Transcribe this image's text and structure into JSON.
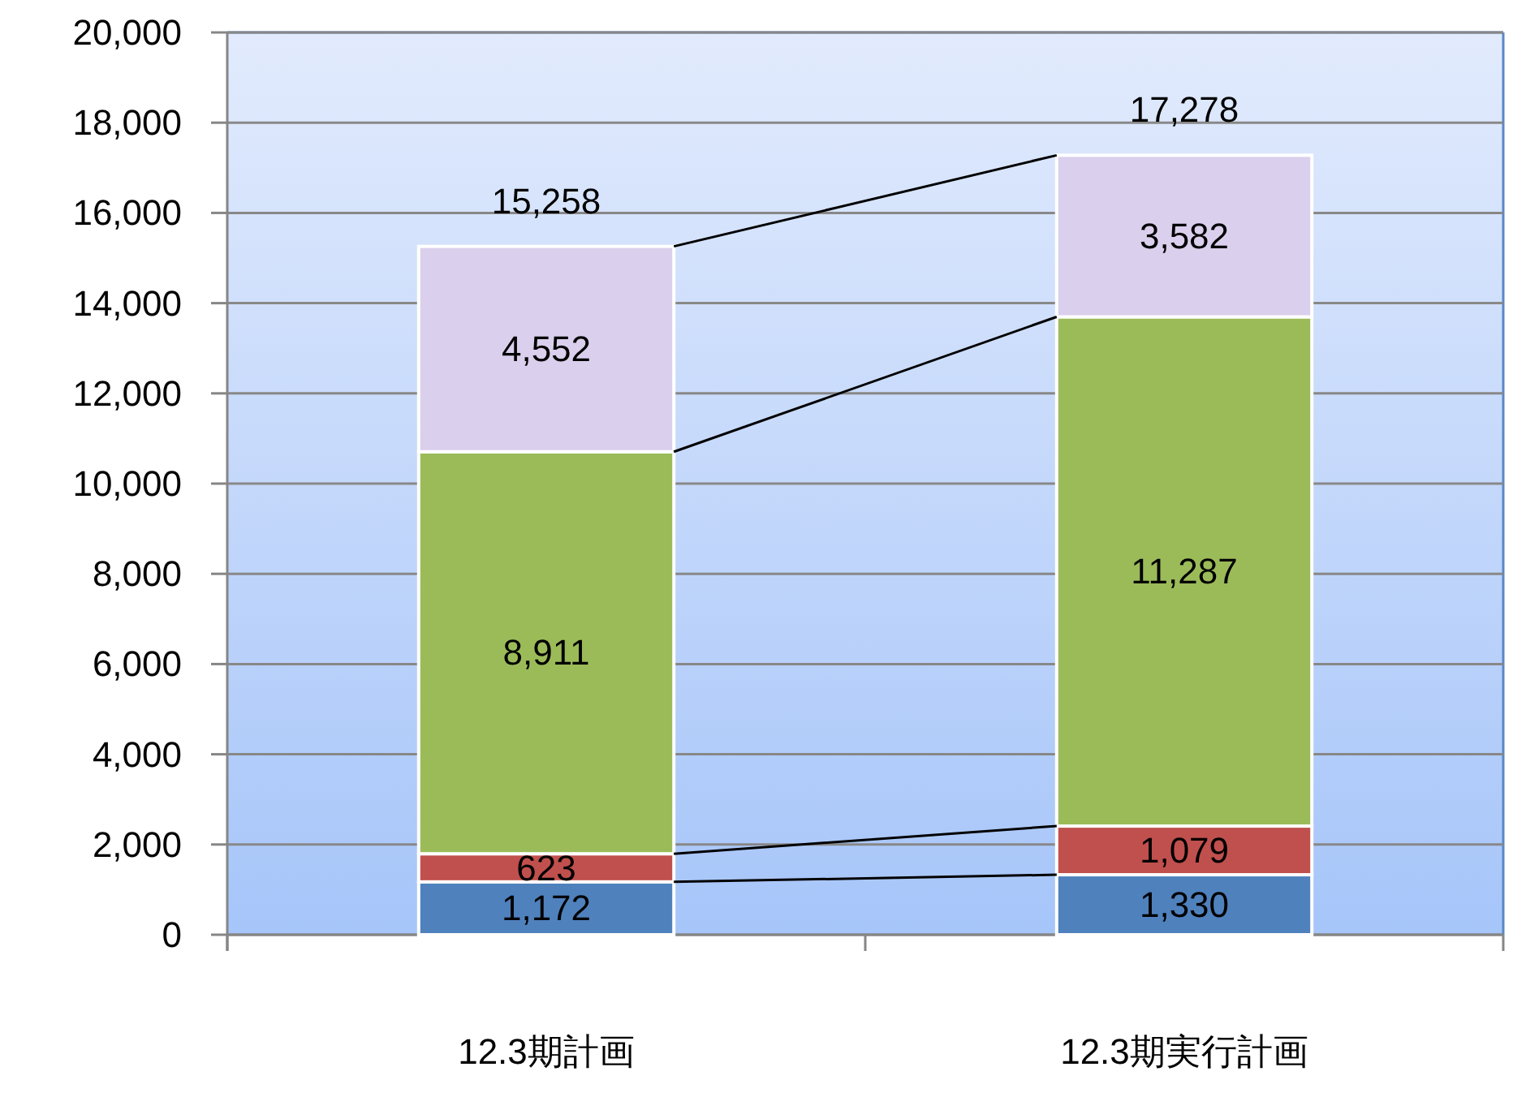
{
  "chart_data": {
    "type": "bar",
    "stacked": true,
    "categories": [
      "12.3期計画",
      "12.3期実行計画"
    ],
    "series": [
      {
        "color": "#4f81bd",
        "values": [
          1172,
          1330
        ],
        "value_labels": [
          "1,172",
          "1,330"
        ]
      },
      {
        "color": "#c0504d",
        "values": [
          623,
          1079
        ],
        "value_labels": [
          "623",
          "1,079"
        ]
      },
      {
        "color": "#9bbb59",
        "values": [
          8911,
          11287
        ],
        "value_labels": [
          "8,911",
          "11,287"
        ]
      },
      {
        "color": "#dacfec",
        "values": [
          4552,
          3582
        ],
        "value_labels": [
          "4,552",
          "3,582"
        ]
      }
    ],
    "totals": [
      "15,258",
      "17,278"
    ],
    "ylim": [
      0,
      20000
    ],
    "yticks": [
      0,
      {
        "value": 2000,
        "label": "2,000"
      },
      {
        "value": 4000,
        "label": "4,000"
      },
      {
        "value": 6000,
        "label": "6,000"
      },
      {
        "value": 8000,
        "label": "8,000"
      },
      {
        "value": 10000,
        "label": "10,000"
      },
      {
        "value": 12000,
        "label": "12,000"
      },
      {
        "value": 14000,
        "label": "14,000"
      },
      {
        "value": 16000,
        "label": "16,000"
      },
      {
        "value": 18000,
        "label": "18,000"
      },
      {
        "value": 20000,
        "label": "20,000"
      }
    ],
    "grid": "y"
  }
}
